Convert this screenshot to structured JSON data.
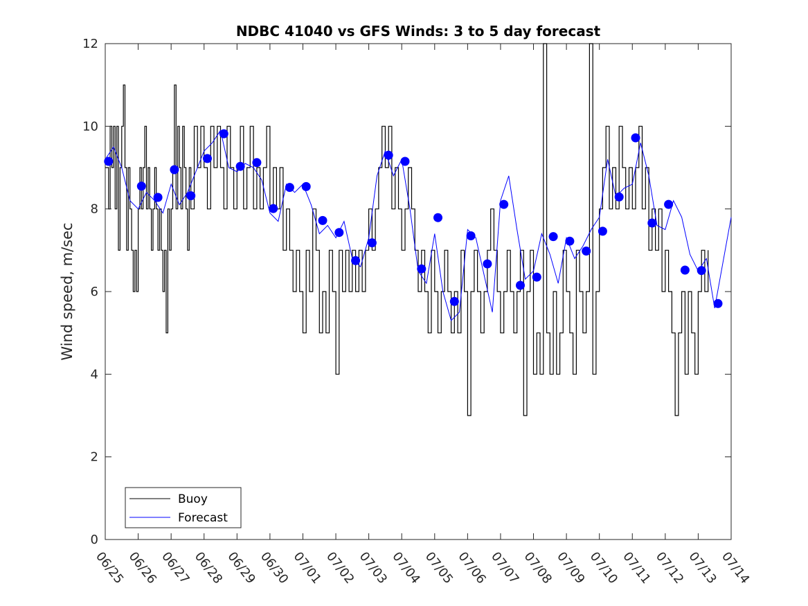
{
  "chart_data": {
    "type": "line",
    "title": "NDBC 41040 vs GFS Winds: 3 to 5 day forecast",
    "xlabel": "",
    "ylabel": "Wind speed, m/sec",
    "x_tick_labels": [
      "06/25",
      "06/26",
      "06/27",
      "06/28",
      "06/29",
      "06/30",
      "07/01",
      "07/02",
      "07/03",
      "07/04",
      "07/05",
      "07/06",
      "07/07",
      "07/08",
      "07/09",
      "07/10",
      "07/11",
      "07/12",
      "07/13",
      "07/14"
    ],
    "x_range_days": [
      0,
      19
    ],
    "ylim": [
      0,
      12
    ],
    "y_ticks": [
      0,
      2,
      4,
      6,
      8,
      10,
      12
    ],
    "grid": false,
    "legend_position": "bottom-left",
    "colors": {
      "buoy": "#000000",
      "forecast": "#0000ff",
      "markers": "#0000ff"
    },
    "series": [
      {
        "name": "Buoy",
        "style": "step-line",
        "points_day_value": [
          [
            0.0,
            9
          ],
          [
            0.1,
            8
          ],
          [
            0.15,
            10
          ],
          [
            0.2,
            9
          ],
          [
            0.25,
            10
          ],
          [
            0.3,
            8
          ],
          [
            0.35,
            10
          ],
          [
            0.4,
            7
          ],
          [
            0.45,
            9
          ],
          [
            0.5,
            10
          ],
          [
            0.55,
            11
          ],
          [
            0.6,
            9
          ],
          [
            0.65,
            7
          ],
          [
            0.7,
            9
          ],
          [
            0.75,
            8
          ],
          [
            0.8,
            7
          ],
          [
            0.85,
            6
          ],
          [
            0.9,
            7
          ],
          [
            0.95,
            6
          ],
          [
            1.0,
            8
          ],
          [
            1.05,
            9
          ],
          [
            1.1,
            8
          ],
          [
            1.15,
            9
          ],
          [
            1.2,
            10
          ],
          [
            1.25,
            8
          ],
          [
            1.3,
            9
          ],
          [
            1.35,
            8
          ],
          [
            1.4,
            7
          ],
          [
            1.45,
            8
          ],
          [
            1.5,
            9
          ],
          [
            1.55,
            8
          ],
          [
            1.6,
            7
          ],
          [
            1.65,
            8
          ],
          [
            1.7,
            7
          ],
          [
            1.75,
            6
          ],
          [
            1.8,
            7
          ],
          [
            1.85,
            5
          ],
          [
            1.9,
            8
          ],
          [
            1.95,
            7
          ],
          [
            2.0,
            8
          ],
          [
            2.05,
            9
          ],
          [
            2.1,
            11
          ],
          [
            2.15,
            8
          ],
          [
            2.2,
            10
          ],
          [
            2.25,
            9
          ],
          [
            2.3,
            8
          ],
          [
            2.35,
            10
          ],
          [
            2.4,
            9
          ],
          [
            2.45,
            8
          ],
          [
            2.5,
            7
          ],
          [
            2.55,
            9
          ],
          [
            2.6,
            8
          ],
          [
            2.7,
            10
          ],
          [
            2.8,
            9
          ],
          [
            2.9,
            10
          ],
          [
            3.0,
            9
          ],
          [
            3.1,
            8
          ],
          [
            3.2,
            10
          ],
          [
            3.3,
            9
          ],
          [
            3.4,
            10
          ],
          [
            3.5,
            9
          ],
          [
            3.6,
            8
          ],
          [
            3.7,
            10
          ],
          [
            3.8,
            9
          ],
          [
            3.9,
            8
          ],
          [
            4.0,
            9
          ],
          [
            4.1,
            10
          ],
          [
            4.2,
            8
          ],
          [
            4.3,
            9
          ],
          [
            4.4,
            10
          ],
          [
            4.5,
            8
          ],
          [
            4.6,
            9
          ],
          [
            4.7,
            8
          ],
          [
            4.8,
            9
          ],
          [
            4.9,
            10
          ],
          [
            5.0,
            8
          ],
          [
            5.1,
            9
          ],
          [
            5.2,
            8
          ],
          [
            5.3,
            9
          ],
          [
            5.4,
            7
          ],
          [
            5.5,
            8
          ],
          [
            5.6,
            7
          ],
          [
            5.7,
            6
          ],
          [
            5.8,
            7
          ],
          [
            5.9,
            6
          ],
          [
            6.0,
            5
          ],
          [
            6.1,
            7
          ],
          [
            6.2,
            6
          ],
          [
            6.3,
            8
          ],
          [
            6.4,
            7
          ],
          [
            6.5,
            5
          ],
          [
            6.6,
            6
          ],
          [
            6.7,
            5
          ],
          [
            6.8,
            7
          ],
          [
            6.9,
            6
          ],
          [
            7.0,
            4
          ],
          [
            7.1,
            7
          ],
          [
            7.2,
            6
          ],
          [
            7.3,
            7
          ],
          [
            7.4,
            6
          ],
          [
            7.5,
            7
          ],
          [
            7.6,
            6
          ],
          [
            7.7,
            7
          ],
          [
            7.8,
            6
          ],
          [
            7.9,
            7
          ],
          [
            8.0,
            8
          ],
          [
            8.1,
            7
          ],
          [
            8.2,
            8
          ],
          [
            8.3,
            9
          ],
          [
            8.4,
            10
          ],
          [
            8.5,
            9
          ],
          [
            8.6,
            10
          ],
          [
            8.7,
            8
          ],
          [
            8.8,
            9
          ],
          [
            8.9,
            8
          ],
          [
            9.0,
            7
          ],
          [
            9.1,
            8
          ],
          [
            9.2,
            9
          ],
          [
            9.3,
            8
          ],
          [
            9.4,
            7
          ],
          [
            9.5,
            6
          ],
          [
            9.6,
            7
          ],
          [
            9.7,
            6
          ],
          [
            9.8,
            5
          ],
          [
            9.9,
            7
          ],
          [
            10.0,
            6
          ],
          [
            10.1,
            5
          ],
          [
            10.2,
            6
          ],
          [
            10.3,
            7
          ],
          [
            10.4,
            6
          ],
          [
            10.5,
            5
          ],
          [
            10.6,
            6
          ],
          [
            10.7,
            5
          ],
          [
            10.8,
            7
          ],
          [
            10.9,
            6
          ],
          [
            11.0,
            3
          ],
          [
            11.1,
            6
          ],
          [
            11.2,
            7
          ],
          [
            11.3,
            6
          ],
          [
            11.4,
            5
          ],
          [
            11.5,
            6
          ],
          [
            11.6,
            7
          ],
          [
            11.7,
            8
          ],
          [
            11.8,
            7
          ],
          [
            11.9,
            6
          ],
          [
            12.0,
            5
          ],
          [
            12.1,
            6
          ],
          [
            12.2,
            7
          ],
          [
            12.3,
            6
          ],
          [
            12.4,
            5
          ],
          [
            12.5,
            6
          ],
          [
            12.6,
            7
          ],
          [
            12.7,
            3
          ],
          [
            12.8,
            6
          ],
          [
            12.9,
            7
          ],
          [
            13.0,
            4
          ],
          [
            13.1,
            5
          ],
          [
            13.2,
            4
          ],
          [
            13.3,
            12
          ],
          [
            13.4,
            5
          ],
          [
            13.5,
            4
          ],
          [
            13.6,
            6
          ],
          [
            13.7,
            4
          ],
          [
            13.8,
            5
          ],
          [
            13.9,
            7
          ],
          [
            14.0,
            6
          ],
          [
            14.1,
            5
          ],
          [
            14.2,
            4
          ],
          [
            14.3,
            7
          ],
          [
            14.4,
            6
          ],
          [
            14.5,
            5
          ],
          [
            14.6,
            6
          ],
          [
            14.7,
            12
          ],
          [
            14.8,
            4
          ],
          [
            14.9,
            6
          ],
          [
            15.0,
            8
          ],
          [
            15.1,
            9
          ],
          [
            15.2,
            10
          ],
          [
            15.3,
            8
          ],
          [
            15.4,
            9
          ],
          [
            15.5,
            8
          ],
          [
            15.6,
            10
          ],
          [
            15.7,
            9
          ],
          [
            15.8,
            8
          ],
          [
            15.9,
            9
          ],
          [
            16.0,
            8
          ],
          [
            16.1,
            9
          ],
          [
            16.2,
            10
          ],
          [
            16.3,
            8
          ],
          [
            16.4,
            9
          ],
          [
            16.5,
            7
          ],
          [
            16.6,
            8
          ],
          [
            16.7,
            7
          ],
          [
            16.8,
            8
          ],
          [
            16.9,
            6
          ],
          [
            17.0,
            7
          ],
          [
            17.1,
            6
          ],
          [
            17.2,
            5
          ],
          [
            17.3,
            3
          ],
          [
            17.4,
            5
          ],
          [
            17.5,
            6
          ],
          [
            17.6,
            4
          ],
          [
            17.7,
            6
          ],
          [
            17.8,
            5
          ],
          [
            17.9,
            4
          ],
          [
            18.0,
            6
          ],
          [
            18.1,
            7
          ],
          [
            18.2,
            6
          ],
          [
            18.3,
            7
          ]
        ]
      },
      {
        "name": "Forecast",
        "style": "line",
        "points_day_value": [
          [
            0.0,
            9.2
          ],
          [
            0.25,
            9.5
          ],
          [
            0.5,
            9.0
          ],
          [
            0.75,
            8.2
          ],
          [
            1.0,
            8.0
          ],
          [
            1.25,
            8.4
          ],
          [
            1.5,
            8.2
          ],
          [
            1.75,
            7.9
          ],
          [
            2.0,
            8.6
          ],
          [
            2.25,
            8.1
          ],
          [
            2.5,
            8.4
          ],
          [
            2.75,
            8.9
          ],
          [
            3.0,
            9.4
          ],
          [
            3.25,
            9.6
          ],
          [
            3.5,
            9.9
          ],
          [
            3.75,
            9.0
          ],
          [
            4.0,
            8.9
          ],
          [
            4.25,
            9.1
          ],
          [
            4.5,
            9.0
          ],
          [
            4.75,
            8.7
          ],
          [
            5.0,
            7.9
          ],
          [
            5.25,
            7.7
          ],
          [
            5.5,
            8.6
          ],
          [
            5.75,
            8.4
          ],
          [
            6.0,
            8.6
          ],
          [
            6.25,
            8.1
          ],
          [
            6.5,
            7.4
          ],
          [
            6.75,
            7.6
          ],
          [
            7.0,
            7.3
          ],
          [
            7.25,
            7.7
          ],
          [
            7.5,
            6.8
          ],
          [
            7.75,
            6.6
          ],
          [
            8.0,
            7.3
          ],
          [
            8.25,
            8.8
          ],
          [
            8.5,
            9.4
          ],
          [
            8.75,
            8.8
          ],
          [
            9.0,
            9.2
          ],
          [
            9.25,
            8.0
          ],
          [
            9.5,
            6.5
          ],
          [
            9.75,
            6.2
          ],
          [
            10.0,
            7.4
          ],
          [
            10.25,
            6.0
          ],
          [
            10.5,
            5.3
          ],
          [
            10.75,
            5.5
          ],
          [
            11.0,
            7.5
          ],
          [
            11.25,
            7.3
          ],
          [
            11.5,
            6.4
          ],
          [
            11.75,
            5.5
          ],
          [
            12.0,
            8.2
          ],
          [
            12.25,
            8.8
          ],
          [
            12.5,
            7.5
          ],
          [
            12.75,
            6.3
          ],
          [
            13.0,
            6.5
          ],
          [
            13.25,
            7.4
          ],
          [
            13.5,
            6.9
          ],
          [
            13.75,
            6.2
          ],
          [
            14.0,
            7.3
          ],
          [
            14.25,
            6.8
          ],
          [
            14.5,
            7.1
          ],
          [
            14.75,
            7.5
          ],
          [
            15.0,
            7.8
          ],
          [
            15.25,
            9.2
          ],
          [
            15.5,
            8.3
          ],
          [
            15.75,
            8.5
          ],
          [
            16.0,
            8.6
          ],
          [
            16.25,
            9.6
          ],
          [
            16.5,
            8.8
          ],
          [
            16.75,
            7.6
          ],
          [
            17.0,
            7.5
          ],
          [
            17.25,
            8.2
          ],
          [
            17.5,
            7.8
          ],
          [
            17.75,
            6.9
          ],
          [
            18.0,
            6.5
          ],
          [
            18.25,
            6.8
          ],
          [
            18.5,
            5.6
          ],
          [
            18.75,
            6.7
          ],
          [
            19.0,
            7.8
          ]
        ]
      },
      {
        "name": "",
        "style": "markers",
        "points_day_value": [
          [
            0.1,
            9.15
          ],
          [
            1.1,
            8.55
          ],
          [
            1.6,
            8.28
          ],
          [
            2.1,
            8.95
          ],
          [
            2.6,
            8.32
          ],
          [
            3.1,
            9.22
          ],
          [
            3.6,
            9.82
          ],
          [
            4.1,
            9.03
          ],
          [
            4.6,
            9.12
          ],
          [
            5.1,
            8.01
          ],
          [
            5.6,
            8.52
          ],
          [
            6.1,
            8.54
          ],
          [
            6.6,
            7.72
          ],
          [
            7.1,
            7.43
          ],
          [
            7.6,
            6.75
          ],
          [
            8.1,
            7.18
          ],
          [
            8.6,
            9.3
          ],
          [
            9.1,
            9.15
          ],
          [
            9.6,
            6.55
          ],
          [
            10.1,
            7.79
          ],
          [
            10.6,
            5.76
          ],
          [
            11.1,
            7.35
          ],
          [
            11.6,
            6.67
          ],
          [
            12.1,
            8.11
          ],
          [
            12.6,
            6.15
          ],
          [
            13.1,
            6.35
          ],
          [
            13.6,
            7.33
          ],
          [
            14.1,
            7.22
          ],
          [
            14.6,
            6.98
          ],
          [
            15.1,
            7.46
          ],
          [
            15.6,
            8.29
          ],
          [
            16.1,
            9.72
          ],
          [
            16.6,
            7.66
          ],
          [
            17.1,
            8.11
          ],
          [
            17.6,
            6.52
          ],
          [
            18.1,
            6.51
          ],
          [
            18.6,
            5.71
          ]
        ]
      }
    ],
    "legend_entries": [
      "Buoy",
      "Forecast"
    ]
  }
}
